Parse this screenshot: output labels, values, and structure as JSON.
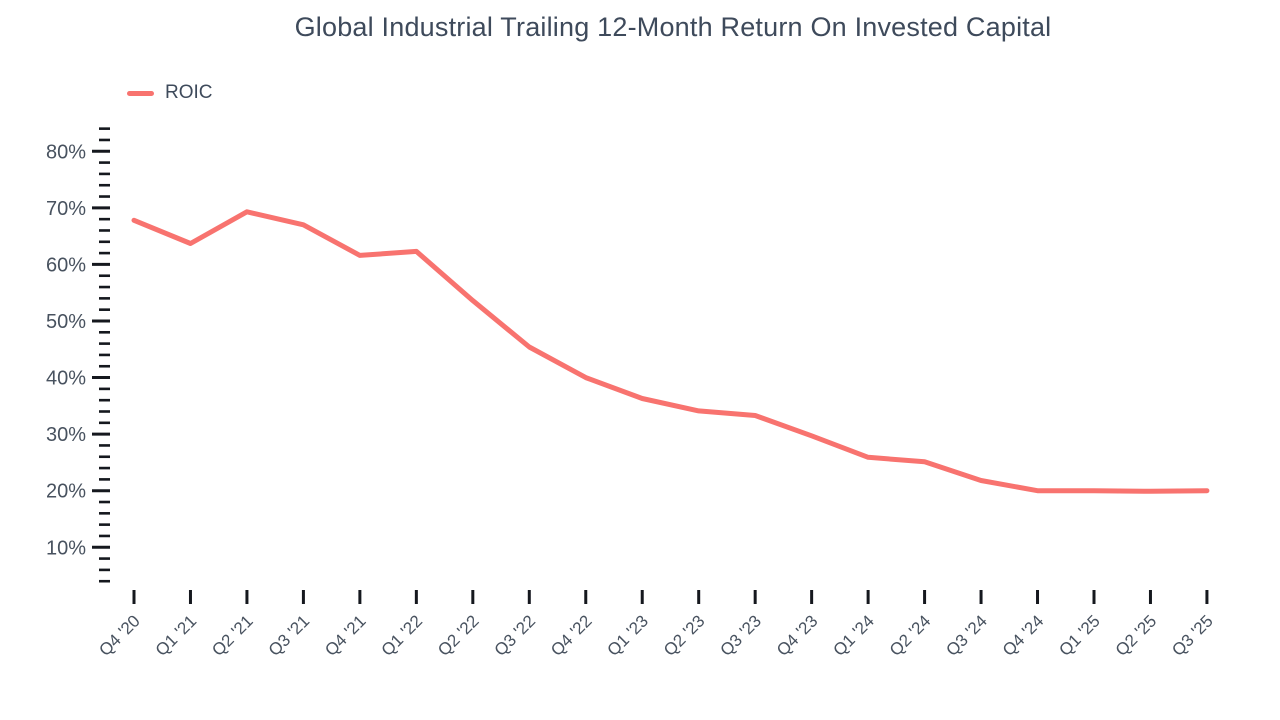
{
  "chart": {
    "title": "Global Industrial Trailing 12-Month Return On Invested Capital",
    "legend": [
      {
        "label": "ROIC",
        "color": "#F8736F"
      }
    ]
  },
  "chart_data": {
    "type": "line",
    "title": "Global Industrial Trailing 12-Month Return On Invested Capital",
    "xlabel": "",
    "ylabel": "",
    "categories": [
      "Q4 '20",
      "Q1 '21",
      "Q2 '21",
      "Q3 '21",
      "Q4 '21",
      "Q1 '22",
      "Q2 '22",
      "Q3 '22",
      "Q4 '22",
      "Q1 '23",
      "Q2 '23",
      "Q3 '23",
      "Q4 '23",
      "Q1 '24",
      "Q2 '24",
      "Q3 '24",
      "Q4 '24",
      "Q1 '25",
      "Q2 '25",
      "Q3 '25"
    ],
    "series": [
      {
        "name": "ROIC",
        "color": "#F8736F",
        "values": [
          67.8,
          63.7,
          69.3,
          67.0,
          61.6,
          62.3,
          53.6,
          45.4,
          40.0,
          36.3,
          34.1,
          33.3,
          29.7,
          25.9,
          25.1,
          21.8,
          20.0,
          20.0,
          19.9,
          20.0
        ]
      }
    ],
    "y_axis": {
      "unit": "%",
      "range": [
        4,
        84
      ],
      "major_tick_values": [
        10,
        20,
        30,
        40,
        50,
        60,
        70,
        80
      ],
      "minor_tick_step": 2,
      "tick_labels": [
        "10%",
        "20%",
        "30%",
        "40%",
        "50%",
        "60%",
        "70%",
        "80%"
      ]
    },
    "grid": false,
    "legend_position": "top-left"
  },
  "colors": {
    "background": "#FFFFFF",
    "line": "#F8736F",
    "title_text": "#3E4A5B",
    "axis_label_text": "#48525F",
    "tick_mark": "#15181E"
  }
}
